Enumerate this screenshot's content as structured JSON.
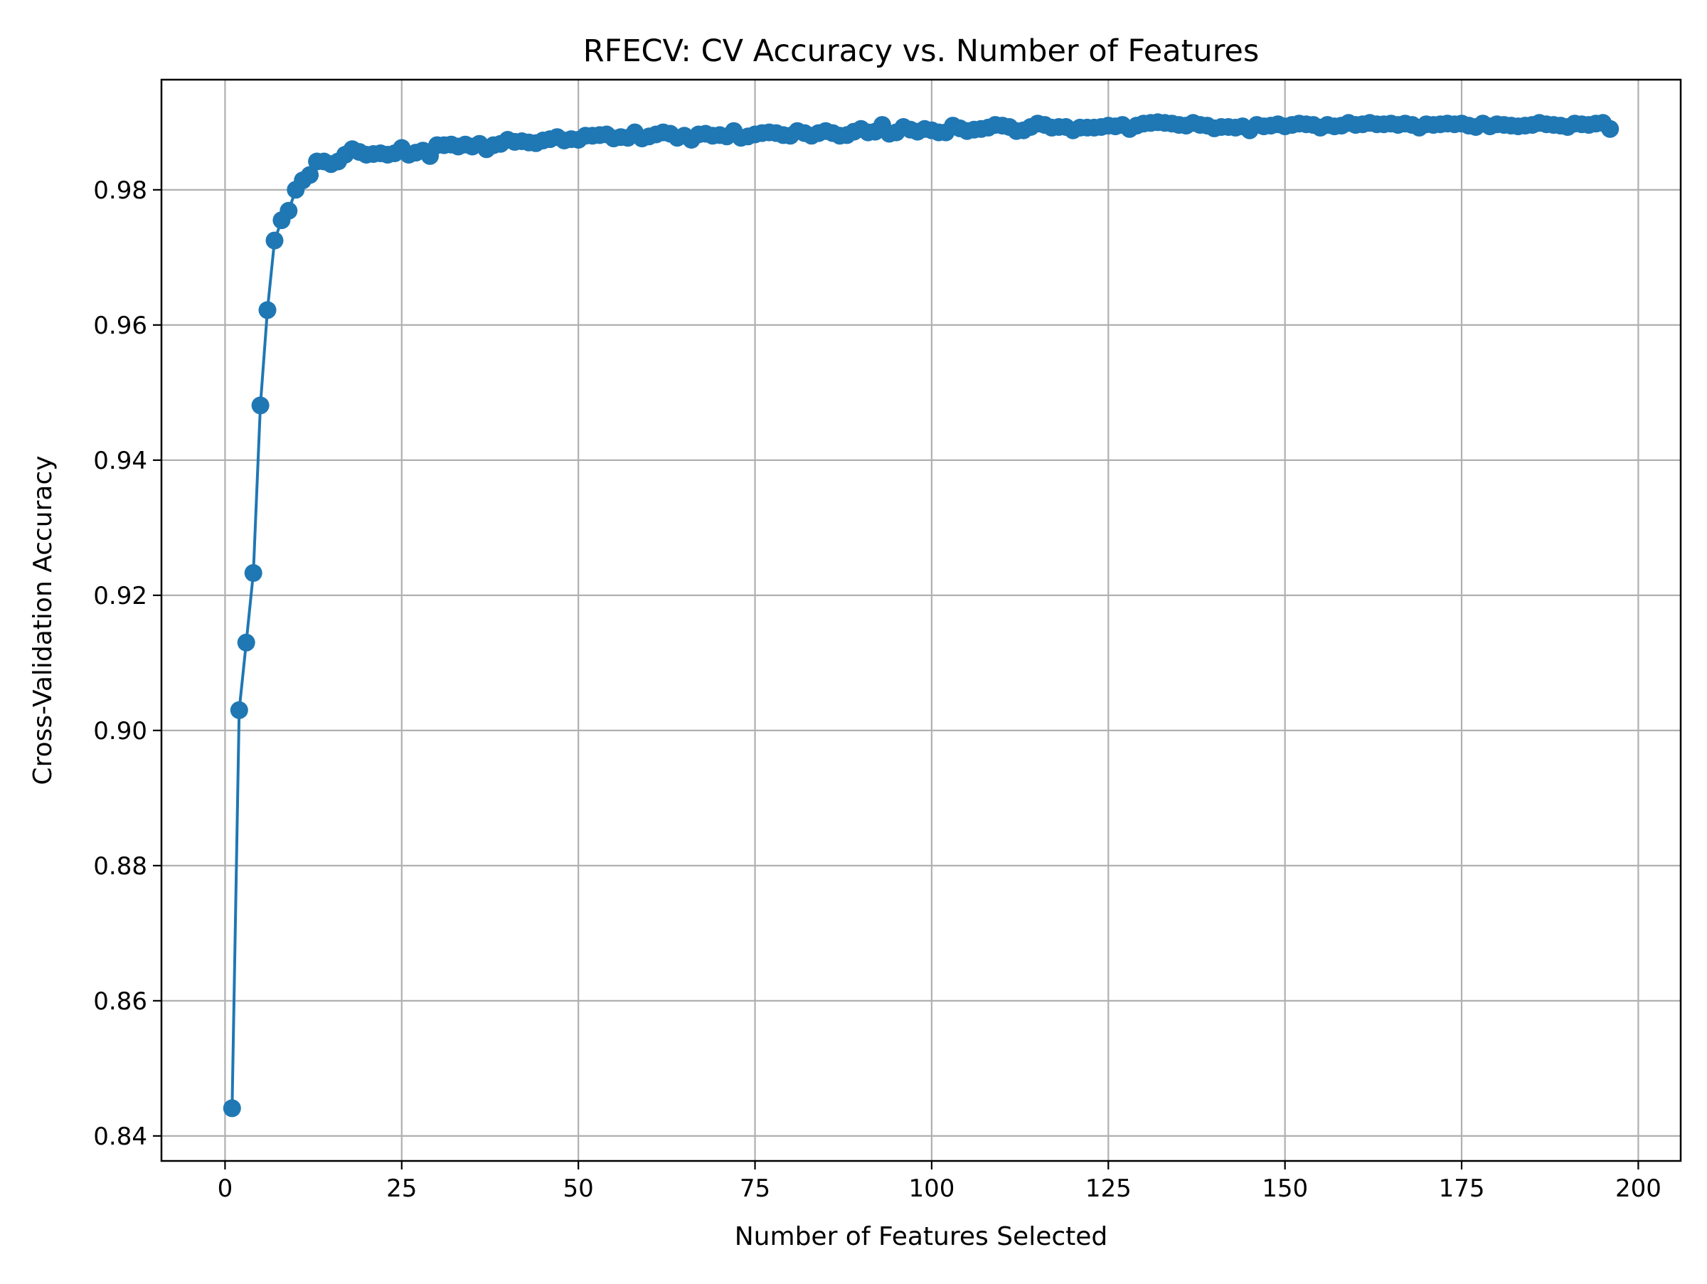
{
  "chart_data": {
    "type": "line",
    "title": "RFECV: CV Accuracy vs. Number of Features",
    "xlabel": "Number of Features Selected",
    "ylabel": "Cross-Validation Accuracy",
    "xlim": [
      -9,
      206
    ],
    "ylim": [
      0.8363,
      0.9963
    ],
    "xticks": [
      0,
      25,
      50,
      75,
      100,
      125,
      150,
      175,
      200
    ],
    "xtick_labels": [
      "0",
      "25",
      "50",
      "75",
      "100",
      "125",
      "150",
      "175",
      "200"
    ],
    "yticks": [
      0.84,
      0.86,
      0.88,
      0.9,
      0.92,
      0.94,
      0.96,
      0.98
    ],
    "ytick_labels": [
      "0.84",
      "0.86",
      "0.88",
      "0.90",
      "0.92",
      "0.94",
      "0.96",
      "0.98"
    ],
    "grid": true,
    "legend": "none",
    "marker": "circle",
    "series": [
      {
        "color": "#1f77b4",
        "x_start": 1,
        "x_step": 1,
        "values": [
          0.8441,
          0.903,
          0.913,
          0.9233,
          0.9481,
          0.9622,
          0.9725,
          0.9755,
          0.9769,
          0.98,
          0.9814,
          0.9822,
          0.9842,
          0.9842,
          0.9838,
          0.9842,
          0.9852,
          0.986,
          0.9856,
          0.9852,
          0.9853,
          0.9854,
          0.9852,
          0.9854,
          0.9862,
          0.9852,
          0.9855,
          0.9858,
          0.985,
          0.9866,
          0.9866,
          0.9867,
          0.9864,
          0.9867,
          0.9864,
          0.9868,
          0.986,
          0.9866,
          0.9868,
          0.9874,
          0.9871,
          0.9872,
          0.987,
          0.9869,
          0.9873,
          0.9875,
          0.9878,
          0.9873,
          0.9875,
          0.9874,
          0.988,
          0.988,
          0.9881,
          0.9882,
          0.9876,
          0.9878,
          0.9877,
          0.9885,
          0.9876,
          0.9879,
          0.9882,
          0.9885,
          0.9883,
          0.9877,
          0.988,
          0.9874,
          0.9882,
          0.9883,
          0.988,
          0.9881,
          0.9879,
          0.9887,
          0.9877,
          0.9879,
          0.9882,
          0.9884,
          0.9885,
          0.9884,
          0.9881,
          0.988,
          0.9887,
          0.9884,
          0.988,
          0.9884,
          0.9887,
          0.9884,
          0.988,
          0.9881,
          0.9886,
          0.989,
          0.9885,
          0.9886,
          0.9896,
          0.9883,
          0.9885,
          0.9893,
          0.9889,
          0.9886,
          0.989,
          0.9888,
          0.9885,
          0.9885,
          0.9895,
          0.9891,
          0.9887,
          0.9889,
          0.989,
          0.9892,
          0.9896,
          0.9895,
          0.9893,
          0.9887,
          0.9888,
          0.9893,
          0.9898,
          0.9896,
          0.9892,
          0.9893,
          0.9893,
          0.9888,
          0.9892,
          0.9892,
          0.9892,
          0.9893,
          0.9895,
          0.9894,
          0.9896,
          0.989,
          0.9895,
          0.9898,
          0.9899,
          0.99,
          0.9899,
          0.9898,
          0.9896,
          0.9895,
          0.9899,
          0.9896,
          0.9895,
          0.9891,
          0.9893,
          0.9893,
          0.9892,
          0.9894,
          0.9888,
          0.9896,
          0.9894,
          0.9895,
          0.9897,
          0.9894,
          0.9896,
          0.9898,
          0.9897,
          0.9896,
          0.9892,
          0.9896,
          0.9894,
          0.9895,
          0.9899,
          0.9896,
          0.9897,
          0.9899,
          0.9897,
          0.9897,
          0.9898,
          0.9896,
          0.9898,
          0.9896,
          0.9892,
          0.9897,
          0.9896,
          0.9897,
          0.9898,
          0.9897,
          0.9898,
          0.9895,
          0.9893,
          0.9898,
          0.9894,
          0.9897,
          0.9896,
          0.9895,
          0.9894,
          0.9895,
          0.9896,
          0.9899,
          0.9897,
          0.9896,
          0.9895,
          0.9893,
          0.9898,
          0.9897,
          0.9896,
          0.9898,
          0.9899,
          0.989
        ]
      }
    ]
  }
}
